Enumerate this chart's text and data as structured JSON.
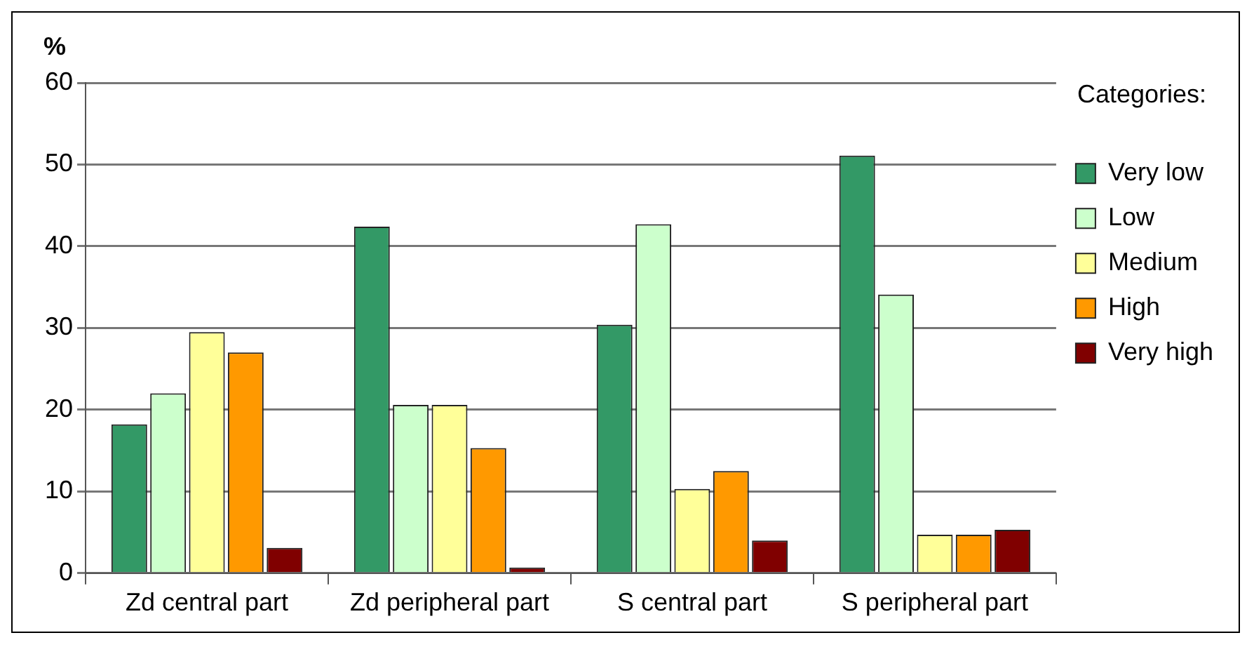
{
  "chart_data": {
    "type": "bar",
    "ylabel": "%",
    "legend_title": "Categories:",
    "categories": [
      "Zd central part",
      "Zd peripheral part",
      "S central part",
      "S peripheral part"
    ],
    "series": [
      {
        "name": "Very low",
        "color": "#339966",
        "values": [
          18.2,
          42.4,
          30.4,
          51.1
        ]
      },
      {
        "name": "Low",
        "color": "#ccffcc",
        "values": [
          22.0,
          20.6,
          42.7,
          34.1
        ]
      },
      {
        "name": "Medium",
        "color": "#ffff99",
        "values": [
          29.5,
          20.6,
          10.3,
          4.7
        ]
      },
      {
        "name": "High",
        "color": "#ff9900",
        "values": [
          27.0,
          15.3,
          12.5,
          4.7
        ]
      },
      {
        "name": "Very high",
        "color": "#800000",
        "values": [
          3.1,
          0.7,
          4.0,
          5.3
        ]
      }
    ],
    "ylim": [
      0,
      60
    ],
    "yticks": [
      0,
      10,
      20,
      30,
      40,
      50,
      60
    ],
    "grid": "y",
    "legend": "right"
  }
}
